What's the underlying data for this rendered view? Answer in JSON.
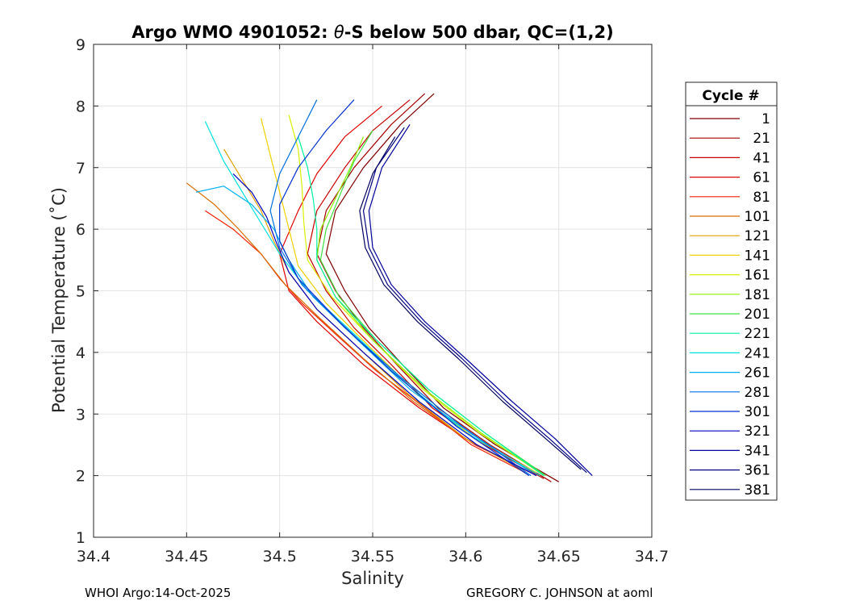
{
  "chart_data": {
    "type": "line",
    "title_prefix": "Argo WMO 4901052: ",
    "title_theta": "θ",
    "title_suffix": "-S below 500 dbar,  QC=(1,2)",
    "xlabel": "Salinity",
    "ylabel": "Potential Temperature (˚C)",
    "xlim": [
      34.4,
      34.7
    ],
    "ylim": [
      1,
      9
    ],
    "xticks": [
      34.4,
      34.45,
      34.5,
      34.55,
      34.6,
      34.65,
      34.7
    ],
    "xtick_labels": [
      "34.4",
      "34.45",
      "34.5",
      "34.55",
      "34.6",
      "34.65",
      "34.7"
    ],
    "yticks": [
      1,
      2,
      3,
      4,
      5,
      6,
      7,
      8,
      9
    ],
    "ytick_labels": [
      "1",
      "2",
      "3",
      "4",
      "5",
      "6",
      "7",
      "8",
      "9"
    ],
    "grid": true,
    "legend_title": "Cycle #",
    "legend_position": "outside-right",
    "series": [
      {
        "name": "1",
        "color": "#800000",
        "points": [
          [
            34.583,
            8.2
          ],
          [
            34.565,
            7.7
          ],
          [
            34.545,
            7.0
          ],
          [
            34.53,
            6.3
          ],
          [
            34.525,
            5.6
          ],
          [
            34.535,
            5.0
          ],
          [
            34.548,
            4.4
          ],
          [
            34.566,
            3.8
          ],
          [
            34.588,
            3.1
          ],
          [
            34.616,
            2.5
          ],
          [
            34.65,
            1.9
          ]
        ]
      },
      {
        "name": "21",
        "color": "#a50000",
        "points": [
          [
            34.578,
            8.2
          ],
          [
            34.56,
            7.7
          ],
          [
            34.54,
            7.0
          ],
          [
            34.525,
            6.3
          ],
          [
            34.52,
            5.6
          ],
          [
            34.53,
            5.0
          ],
          [
            34.545,
            4.4
          ],
          [
            34.563,
            3.8
          ],
          [
            34.585,
            3.1
          ],
          [
            34.613,
            2.5
          ],
          [
            34.646,
            1.9
          ]
        ]
      },
      {
        "name": "41",
        "color": "#c80000",
        "points": [
          [
            34.57,
            8.1
          ],
          [
            34.55,
            7.6
          ],
          [
            34.535,
            7.0
          ],
          [
            34.52,
            6.3
          ],
          [
            34.515,
            5.6
          ],
          [
            34.525,
            5.0
          ],
          [
            34.54,
            4.4
          ],
          [
            34.56,
            3.8
          ],
          [
            34.582,
            3.1
          ],
          [
            34.61,
            2.5
          ],
          [
            34.642,
            1.95
          ]
        ]
      },
      {
        "name": "61",
        "color": "#e00000",
        "points": [
          [
            34.555,
            8.0
          ],
          [
            34.535,
            7.5
          ],
          [
            34.52,
            6.9
          ],
          [
            34.51,
            6.3
          ],
          [
            34.5,
            5.6
          ],
          [
            34.505,
            5.0
          ],
          [
            34.52,
            4.5
          ],
          [
            34.545,
            3.8
          ],
          [
            34.575,
            3.1
          ],
          [
            34.605,
            2.5
          ],
          [
            34.638,
            2.0
          ]
        ]
      },
      {
        "name": "81",
        "color": "#f02000",
        "points": [
          [
            34.46,
            6.3
          ],
          [
            34.475,
            6.0
          ],
          [
            34.49,
            5.6
          ],
          [
            34.5,
            5.2
          ],
          [
            34.512,
            4.8
          ],
          [
            34.53,
            4.3
          ],
          [
            34.552,
            3.7
          ],
          [
            34.578,
            3.1
          ],
          [
            34.603,
            2.5
          ],
          [
            34.632,
            2.05
          ]
        ]
      },
      {
        "name": "101",
        "color": "#d96c00",
        "points": [
          [
            34.45,
            6.75
          ],
          [
            34.465,
            6.4
          ],
          [
            34.478,
            6.0
          ],
          [
            34.49,
            5.6
          ],
          [
            34.503,
            5.1
          ],
          [
            34.52,
            4.6
          ],
          [
            34.545,
            3.9
          ],
          [
            34.572,
            3.2
          ],
          [
            34.6,
            2.6
          ],
          [
            34.63,
            2.1
          ]
        ]
      },
      {
        "name": "121",
        "color": "#e0a000",
        "points": [
          [
            34.47,
            7.3
          ],
          [
            34.48,
            6.8
          ],
          [
            34.49,
            6.3
          ],
          [
            34.497,
            5.8
          ],
          [
            34.505,
            5.3
          ],
          [
            34.52,
            4.7
          ],
          [
            34.545,
            4.0
          ],
          [
            34.57,
            3.3
          ],
          [
            34.6,
            2.6
          ],
          [
            34.63,
            2.1
          ]
        ]
      },
      {
        "name": "141",
        "color": "#f0d000",
        "points": [
          [
            34.49,
            7.8
          ],
          [
            34.495,
            7.2
          ],
          [
            34.5,
            6.6
          ],
          [
            34.505,
            6.0
          ],
          [
            34.51,
            5.4
          ],
          [
            34.525,
            4.8
          ],
          [
            34.548,
            4.1
          ],
          [
            34.575,
            3.3
          ],
          [
            34.605,
            2.6
          ],
          [
            34.638,
            2.05
          ]
        ]
      },
      {
        "name": "161",
        "color": "#d8f000",
        "points": [
          [
            34.505,
            7.85
          ],
          [
            34.51,
            7.3
          ],
          [
            34.512,
            6.7
          ],
          [
            34.513,
            6.1
          ],
          [
            34.515,
            5.5
          ],
          [
            34.528,
            4.9
          ],
          [
            34.55,
            4.2
          ],
          [
            34.577,
            3.4
          ],
          [
            34.607,
            2.7
          ],
          [
            34.64,
            2.05
          ]
        ]
      },
      {
        "name": "181",
        "color": "#90f000",
        "points": [
          [
            34.545,
            7.5
          ],
          [
            34.538,
            7.0
          ],
          [
            34.53,
            6.5
          ],
          [
            34.522,
            6.0
          ],
          [
            34.52,
            5.5
          ],
          [
            34.53,
            4.9
          ],
          [
            34.55,
            4.2
          ],
          [
            34.578,
            3.4
          ],
          [
            34.608,
            2.7
          ],
          [
            34.642,
            2.0
          ]
        ]
      },
      {
        "name": "201",
        "color": "#40e040",
        "points": [
          [
            34.55,
            7.6
          ],
          [
            34.54,
            7.1
          ],
          [
            34.533,
            6.6
          ],
          [
            34.525,
            6.0
          ],
          [
            34.522,
            5.5
          ],
          [
            34.532,
            4.9
          ],
          [
            34.552,
            4.2
          ],
          [
            34.58,
            3.4
          ],
          [
            34.61,
            2.7
          ],
          [
            34.643,
            2.0
          ]
        ]
      },
      {
        "name": "221",
        "color": "#00f0a0",
        "points": [
          [
            34.51,
            7.5
          ],
          [
            34.515,
            7.0
          ],
          [
            34.518,
            6.5
          ],
          [
            34.52,
            6.0
          ],
          [
            34.52,
            5.5
          ],
          [
            34.53,
            4.9
          ],
          [
            34.552,
            4.2
          ],
          [
            34.58,
            3.4
          ],
          [
            34.61,
            2.7
          ],
          [
            34.642,
            2.0
          ]
        ]
      },
      {
        "name": "241",
        "color": "#00e0e0",
        "points": [
          [
            34.46,
            7.75
          ],
          [
            34.47,
            7.1
          ],
          [
            34.48,
            6.6
          ],
          [
            34.49,
            6.1
          ],
          [
            34.5,
            5.6
          ],
          [
            34.515,
            5.0
          ],
          [
            34.54,
            4.3
          ],
          [
            34.568,
            3.5
          ],
          [
            34.6,
            2.7
          ],
          [
            34.64,
            2.0
          ]
        ]
      },
      {
        "name": "261",
        "color": "#00b0f0",
        "points": [
          [
            34.455,
            6.6
          ],
          [
            34.47,
            6.7
          ],
          [
            34.485,
            6.4
          ],
          [
            34.497,
            6.0
          ],
          [
            34.505,
            5.5
          ],
          [
            34.518,
            4.9
          ],
          [
            34.542,
            4.2
          ],
          [
            34.57,
            3.4
          ],
          [
            34.602,
            2.7
          ],
          [
            34.638,
            2.0
          ]
        ]
      },
      {
        "name": "281",
        "color": "#0070e0",
        "points": [
          [
            34.52,
            8.1
          ],
          [
            34.51,
            7.5
          ],
          [
            34.5,
            6.9
          ],
          [
            34.495,
            6.3
          ],
          [
            34.5,
            5.7
          ],
          [
            34.512,
            5.1
          ],
          [
            34.535,
            4.4
          ],
          [
            34.565,
            3.6
          ],
          [
            34.598,
            2.8
          ],
          [
            34.635,
            2.0
          ]
        ]
      },
      {
        "name": "301",
        "color": "#0030d0",
        "points": [
          [
            34.54,
            8.1
          ],
          [
            34.525,
            7.6
          ],
          [
            34.51,
            7.0
          ],
          [
            34.5,
            6.4
          ],
          [
            34.5,
            5.8
          ],
          [
            34.51,
            5.2
          ],
          [
            34.532,
            4.5
          ],
          [
            34.56,
            3.7
          ],
          [
            34.595,
            2.8
          ],
          [
            34.634,
            2.0
          ]
        ]
      },
      {
        "name": "321",
        "color": "#0000c0",
        "points": [
          [
            34.475,
            6.9
          ],
          [
            34.485,
            6.6
          ],
          [
            34.493,
            6.2
          ],
          [
            34.498,
            5.8
          ],
          [
            34.505,
            5.3
          ],
          [
            34.52,
            4.7
          ],
          [
            34.545,
            4.0
          ],
          [
            34.575,
            3.2
          ],
          [
            34.606,
            2.5
          ],
          [
            34.638,
            2.0
          ]
        ]
      },
      {
        "name": "341",
        "color": "#00009a",
        "points": [
          [
            34.57,
            7.7
          ],
          [
            34.555,
            7.0
          ],
          [
            34.548,
            6.3
          ],
          [
            34.55,
            5.7
          ],
          [
            34.56,
            5.1
          ],
          [
            34.578,
            4.5
          ],
          [
            34.6,
            3.9
          ],
          [
            34.625,
            3.2
          ],
          [
            34.648,
            2.6
          ],
          [
            34.668,
            2.0
          ]
        ]
      },
      {
        "name": "361",
        "color": "#000080",
        "points": [
          [
            34.567,
            7.65
          ],
          [
            34.552,
            7.0
          ],
          [
            34.545,
            6.3
          ],
          [
            34.548,
            5.7
          ],
          [
            34.558,
            5.1
          ],
          [
            34.576,
            4.5
          ],
          [
            34.598,
            3.9
          ],
          [
            34.622,
            3.2
          ],
          [
            34.645,
            2.6
          ],
          [
            34.665,
            2.05
          ]
        ]
      },
      {
        "name": "381",
        "color": "#000060",
        "points": [
          [
            34.562,
            7.5
          ],
          [
            34.55,
            6.9
          ],
          [
            34.543,
            6.3
          ],
          [
            34.546,
            5.7
          ],
          [
            34.556,
            5.1
          ],
          [
            34.574,
            4.5
          ],
          [
            34.596,
            3.9
          ],
          [
            34.62,
            3.2
          ],
          [
            34.643,
            2.6
          ],
          [
            34.662,
            2.1
          ]
        ]
      }
    ]
  },
  "footer": {
    "left": "WHOI Argo:14-Oct-2025",
    "right": "GREGORY C. JOHNSON at aoml"
  }
}
